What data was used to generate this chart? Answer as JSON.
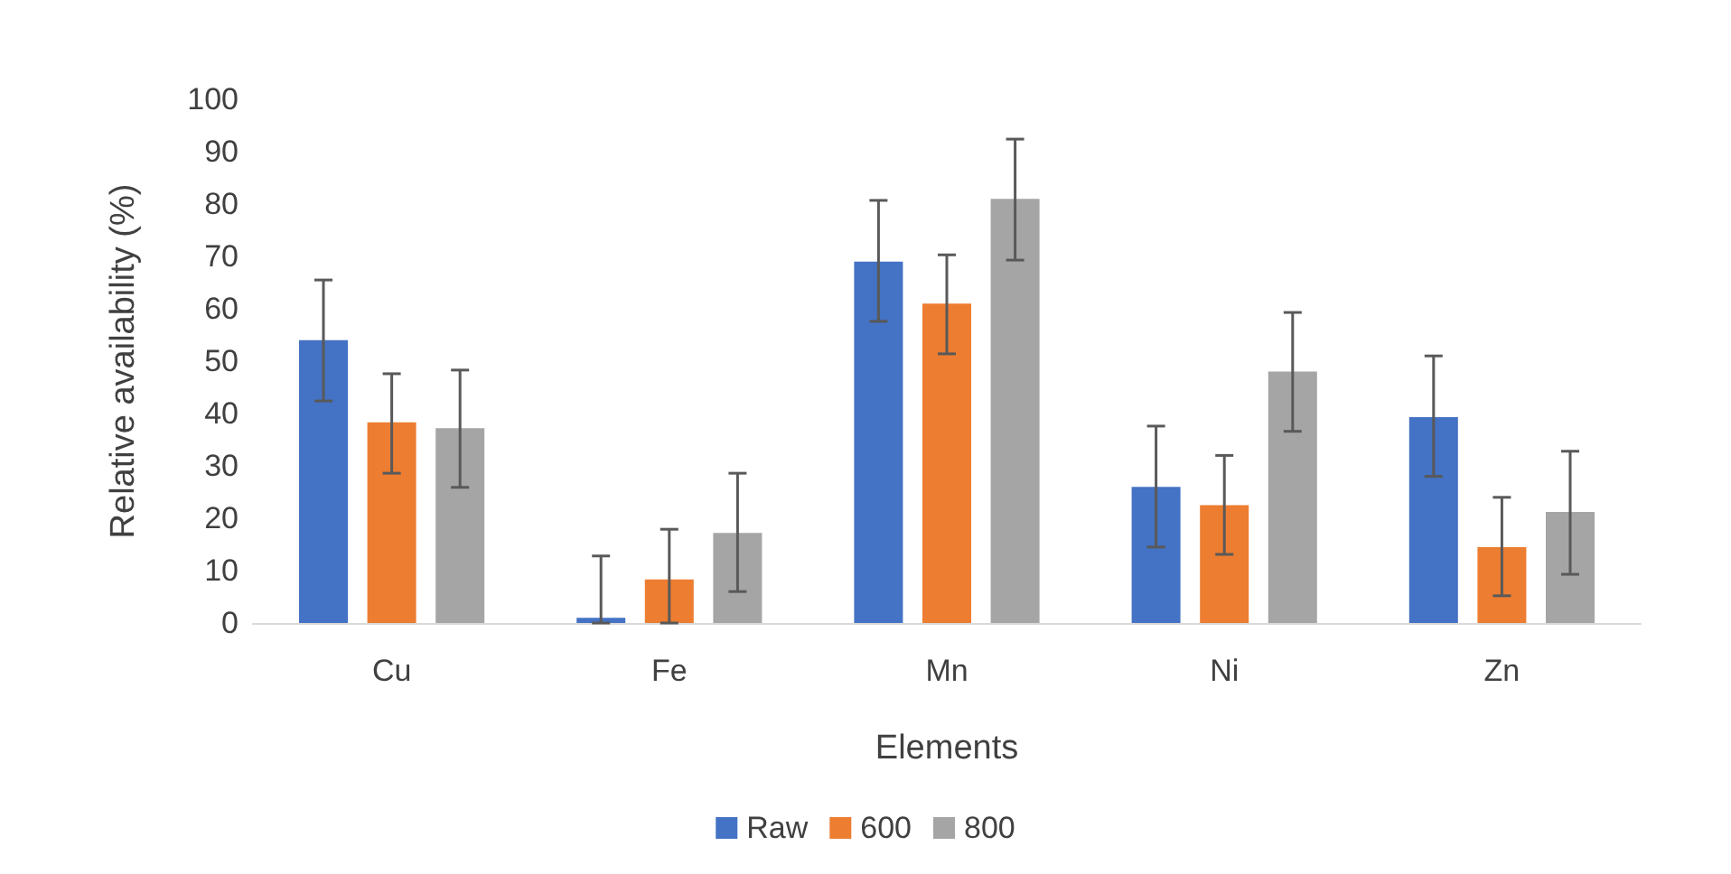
{
  "chart_data": {
    "type": "bar",
    "xlabel": "Elements",
    "ylabel": "Relative availability (%)",
    "categories": [
      "Cu",
      "Fe",
      "Mn",
      "Ni",
      "Zn"
    ],
    "series": [
      {
        "name": "Raw",
        "color": "#4472c4",
        "values": [
          54,
          1,
          69,
          26,
          39.3
        ],
        "errors": [
          [
            42.4,
            65.5
          ],
          [
            0,
            12.8
          ],
          [
            57.6,
            80.7
          ],
          [
            14.5,
            37.6
          ],
          [
            28,
            51
          ]
        ]
      },
      {
        "name": "600",
        "color": "#ed7d31",
        "values": [
          38.3,
          8.3,
          61,
          22.5,
          14.5
        ],
        "errors": [
          [
            28.6,
            47.6
          ],
          [
            0,
            17.9
          ],
          [
            51.4,
            70.3
          ],
          [
            13.1,
            32
          ],
          [
            5.2,
            24
          ]
        ]
      },
      {
        "name": "800",
        "color": "#a5a5a5",
        "values": [
          37.2,
          17.2,
          81,
          48,
          21.2
        ],
        "errors": [
          [
            25.9,
            48.3
          ],
          [
            6,
            28.6
          ],
          [
            69.3,
            92.4
          ],
          [
            36.6,
            59.3
          ],
          [
            9.3,
            32.8
          ]
        ]
      }
    ],
    "ylim": [
      0,
      100
    ],
    "yticks": [
      0,
      10,
      20,
      30,
      40,
      50,
      60,
      70,
      80,
      90,
      100
    ],
    "grid": false,
    "legend": "bottom"
  }
}
